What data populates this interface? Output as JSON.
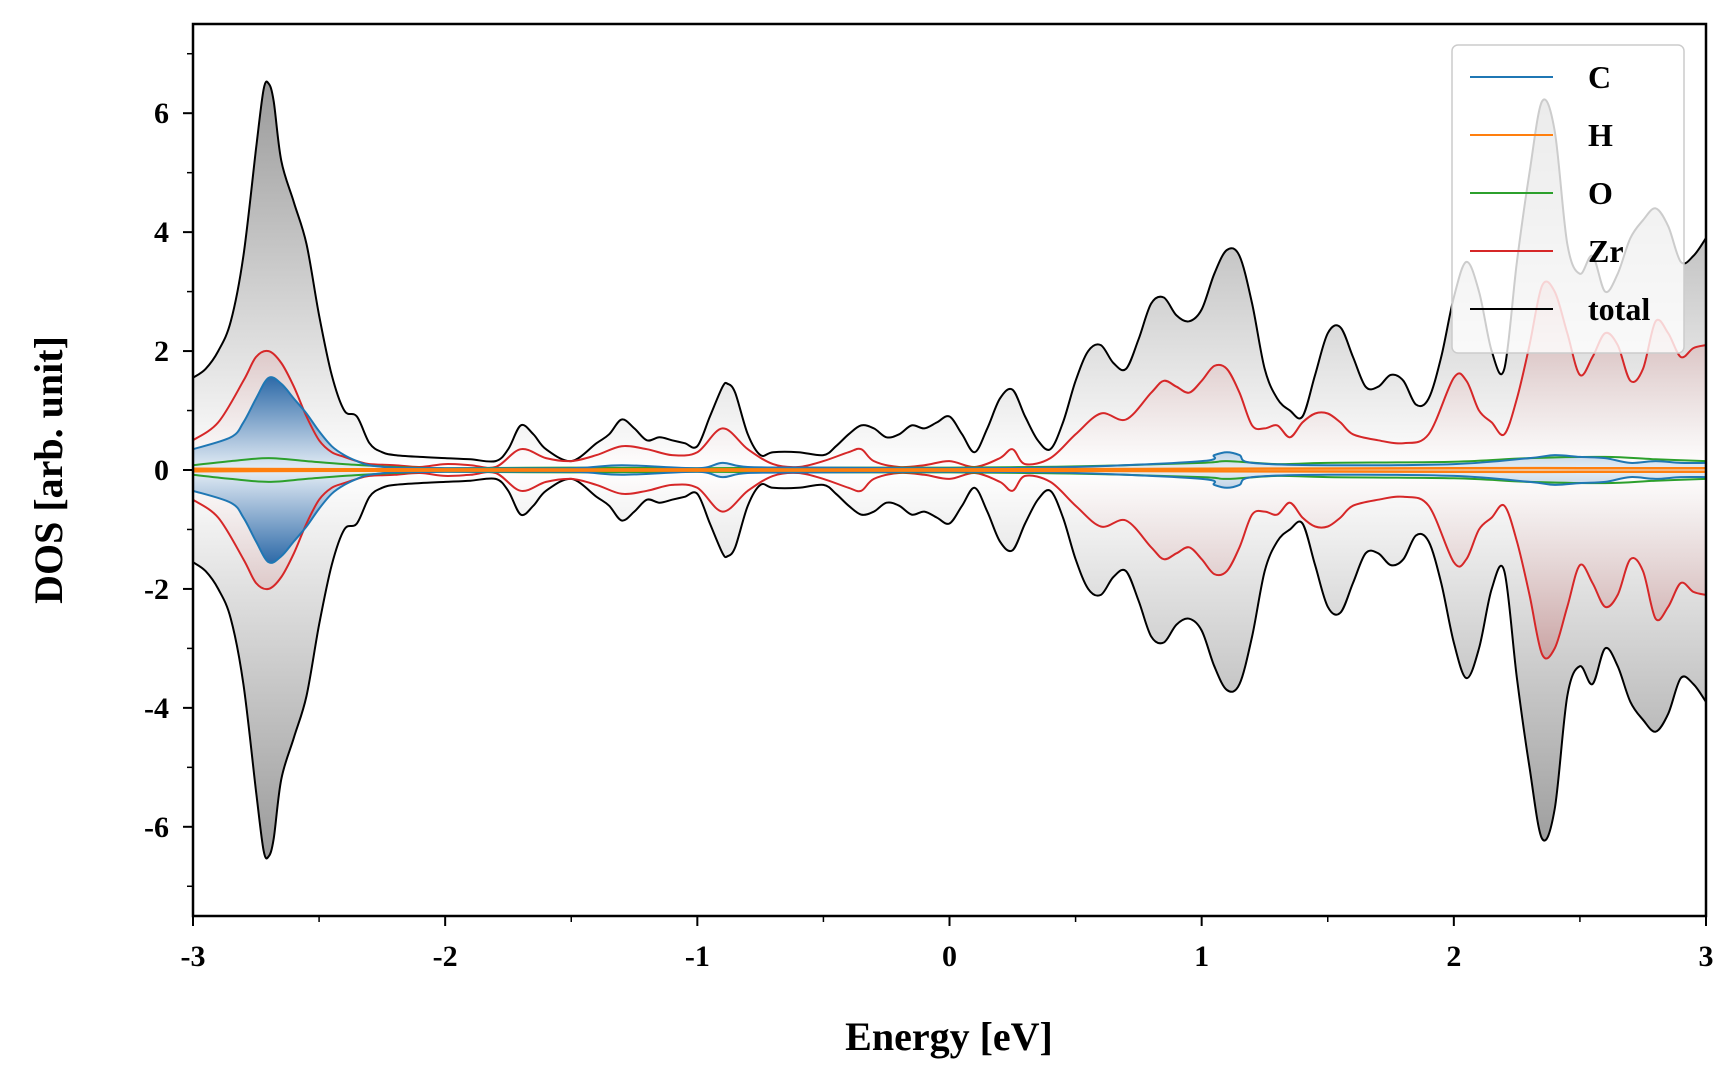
{
  "chart_data": {
    "type": "line",
    "xlabel": "Energy [eV]",
    "ylabel": "DOS [arb. unit]",
    "xlim": [
      -3,
      3
    ],
    "ylim": [
      -7.5,
      7.5
    ],
    "xticks": [
      -3,
      -2,
      -1,
      0,
      1,
      2,
      3
    ],
    "yticks": [
      -6,
      -4,
      -2,
      0,
      2,
      4,
      6
    ],
    "grid": false,
    "legend_position": "top-right",
    "series": [
      {
        "name": "C",
        "color": "#1f77b4",
        "x": [
          -3,
          -2.85,
          -2.8,
          -2.75,
          -2.7,
          -2.65,
          -2.6,
          -2.55,
          -2.5,
          -2.45,
          -2.4,
          -2.35,
          -2.3,
          -2.2,
          -2,
          -1.5,
          -1.3,
          -1,
          -0.9,
          -0.8,
          -0.5,
          0,
          0.5,
          1,
          1.05,
          1.1,
          1.15,
          1.2,
          1.5,
          2,
          2.3,
          2.4,
          2.5,
          2.6,
          2.7,
          2.8,
          2.9,
          3
        ],
        "y": [
          0.35,
          0.55,
          0.8,
          1.2,
          1.55,
          1.45,
          1.2,
          0.95,
          0.65,
          0.4,
          0.25,
          0.15,
          0.08,
          0.04,
          0.03,
          0.03,
          0.08,
          0.03,
          0.12,
          0.05,
          0.04,
          0.03,
          0.05,
          0.15,
          0.25,
          0.3,
          0.25,
          0.12,
          0.08,
          0.1,
          0.2,
          0.25,
          0.22,
          0.2,
          0.12,
          0.15,
          0.12,
          0.12
        ]
      },
      {
        "name": "H",
        "color": "#ff7f0e",
        "x": [
          -3,
          -2,
          -1,
          0,
          1,
          2,
          2.5,
          3
        ],
        "y": [
          0.02,
          0.01,
          0.01,
          0.01,
          0.02,
          0.03,
          0.03,
          0.03
        ]
      },
      {
        "name": "O",
        "color": "#2ca02c",
        "x": [
          -3,
          -2.85,
          -2.7,
          -2.55,
          -2.4,
          -2.2,
          -2,
          -1.5,
          -1,
          -0.5,
          0,
          0.5,
          1,
          1.1,
          1.3,
          1.5,
          2,
          2.3,
          2.6,
          2.8,
          3
        ],
        "y": [
          0.08,
          0.15,
          0.2,
          0.15,
          0.1,
          0.05,
          0.03,
          0.04,
          0.03,
          0.04,
          0.04,
          0.06,
          0.12,
          0.15,
          0.1,
          0.12,
          0.14,
          0.2,
          0.22,
          0.18,
          0.15
        ]
      },
      {
        "name": "Zr",
        "color": "#d62728",
        "x": [
          -3,
          -2.9,
          -2.8,
          -2.75,
          -2.7,
          -2.65,
          -2.6,
          -2.55,
          -2.5,
          -2.45,
          -2.4,
          -2.35,
          -2.3,
          -2.2,
          -2.1,
          -2,
          -1.9,
          -1.8,
          -1.7,
          -1.6,
          -1.5,
          -1.4,
          -1.3,
          -1.2,
          -1.1,
          -1,
          -0.9,
          -0.8,
          -0.7,
          -0.6,
          -0.5,
          -0.4,
          -0.35,
          -0.3,
          -0.2,
          -0.1,
          0,
          0.1,
          0.2,
          0.25,
          0.3,
          0.4,
          0.5,
          0.6,
          0.7,
          0.8,
          0.85,
          0.9,
          0.95,
          1,
          1.05,
          1.1,
          1.15,
          1.2,
          1.25,
          1.3,
          1.35,
          1.4,
          1.45,
          1.5,
          1.55,
          1.6,
          1.7,
          1.8,
          1.9,
          2,
          2.05,
          2.1,
          2.15,
          2.2,
          2.25,
          2.3,
          2.35,
          2.4,
          2.45,
          2.5,
          2.55,
          2.6,
          2.65,
          2.7,
          2.75,
          2.8,
          2.85,
          2.9,
          2.95,
          3
        ],
        "y": [
          0.5,
          0.8,
          1.5,
          1.9,
          2.0,
          1.8,
          1.4,
          0.9,
          0.5,
          0.3,
          0.22,
          0.15,
          0.1,
          0.08,
          0.05,
          0.1,
          0.08,
          0.05,
          0.35,
          0.2,
          0.15,
          0.25,
          0.4,
          0.35,
          0.25,
          0.3,
          0.7,
          0.35,
          0.1,
          0.05,
          0.15,
          0.3,
          0.35,
          0.15,
          0.05,
          0.08,
          0.15,
          0.05,
          0.2,
          0.35,
          0.1,
          0.2,
          0.6,
          0.95,
          0.85,
          1.3,
          1.5,
          1.4,
          1.3,
          1.5,
          1.75,
          1.7,
          1.3,
          0.75,
          0.7,
          0.75,
          0.55,
          0.8,
          0.95,
          0.95,
          0.8,
          0.6,
          0.5,
          0.45,
          0.6,
          1.55,
          1.5,
          1.0,
          0.8,
          0.6,
          1.2,
          2.1,
          3.1,
          3.0,
          2.3,
          1.6,
          1.9,
          2.3,
          2.1,
          1.5,
          1.7,
          2.5,
          2.3,
          1.9,
          2.05,
          2.1
        ]
      },
      {
        "name": "total",
        "color": "#000000",
        "x": [
          -3,
          -2.95,
          -2.9,
          -2.85,
          -2.8,
          -2.75,
          -2.72,
          -2.7,
          -2.68,
          -2.65,
          -2.6,
          -2.55,
          -2.5,
          -2.45,
          -2.4,
          -2.35,
          -2.3,
          -2.25,
          -2.2,
          -2.1,
          -2,
          -1.9,
          -1.8,
          -1.75,
          -1.7,
          -1.65,
          -1.6,
          -1.5,
          -1.4,
          -1.35,
          -1.3,
          -1.25,
          -1.2,
          -1.15,
          -1.1,
          -1.05,
          -1,
          -0.95,
          -0.9,
          -0.88,
          -0.85,
          -0.8,
          -0.75,
          -0.7,
          -0.6,
          -0.5,
          -0.45,
          -0.4,
          -0.35,
          -0.3,
          -0.25,
          -0.2,
          -0.15,
          -0.1,
          -0.05,
          0,
          0.05,
          0.1,
          0.15,
          0.2,
          0.25,
          0.3,
          0.35,
          0.4,
          0.45,
          0.5,
          0.55,
          0.6,
          0.65,
          0.7,
          0.75,
          0.8,
          0.85,
          0.9,
          0.95,
          1,
          1.05,
          1.1,
          1.15,
          1.2,
          1.25,
          1.3,
          1.35,
          1.4,
          1.45,
          1.5,
          1.55,
          1.6,
          1.65,
          1.7,
          1.75,
          1.8,
          1.85,
          1.9,
          1.95,
          2,
          2.05,
          2.1,
          2.15,
          2.2,
          2.25,
          2.3,
          2.35,
          2.4,
          2.45,
          2.5,
          2.55,
          2.6,
          2.65,
          2.7,
          2.75,
          2.8,
          2.85,
          2.9,
          2.95,
          3
        ],
        "y": [
          1.55,
          1.7,
          2.0,
          2.5,
          3.6,
          5.4,
          6.4,
          6.5,
          6.2,
          5.2,
          4.5,
          3.8,
          2.6,
          1.6,
          1.0,
          0.9,
          0.45,
          0.3,
          0.25,
          0.22,
          0.2,
          0.18,
          0.15,
          0.35,
          0.75,
          0.6,
          0.35,
          0.15,
          0.45,
          0.6,
          0.85,
          0.7,
          0.5,
          0.55,
          0.5,
          0.45,
          0.4,
          0.9,
          1.4,
          1.45,
          1.3,
          0.6,
          0.25,
          0.3,
          0.3,
          0.25,
          0.4,
          0.6,
          0.75,
          0.7,
          0.55,
          0.6,
          0.75,
          0.7,
          0.8,
          0.9,
          0.6,
          0.3,
          0.7,
          1.2,
          1.35,
          0.9,
          0.5,
          0.35,
          0.8,
          1.5,
          2.0,
          2.1,
          1.8,
          1.7,
          2.2,
          2.8,
          2.9,
          2.6,
          2.5,
          2.7,
          3.3,
          3.7,
          3.6,
          2.8,
          1.7,
          1.2,
          1.0,
          0.9,
          1.6,
          2.3,
          2.4,
          1.9,
          1.4,
          1.4,
          1.6,
          1.5,
          1.1,
          1.2,
          1.9,
          2.9,
          3.5,
          3.0,
          2.0,
          1.7,
          3.5,
          5.0,
          6.2,
          5.7,
          3.8,
          3.3,
          3.6,
          3.0,
          3.3,
          3.9,
          4.2,
          4.4,
          4.1,
          3.5,
          3.6,
          3.9
        ]
      }
    ],
    "spin_down_mirrored": true
  }
}
